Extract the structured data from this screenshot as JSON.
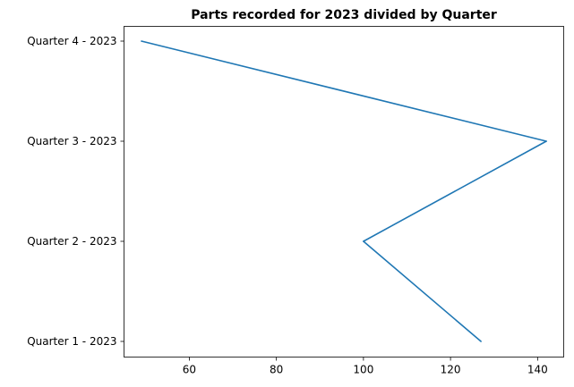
{
  "chart_data": {
    "type": "line",
    "title": "Parts recorded for 2023 divided by Quarter",
    "xlabel": "",
    "ylabel": "",
    "orientation": "horizontal",
    "categories": [
      "Quarter 1 - 2023",
      "Quarter 2 - 2023",
      "Quarter 3 - 2023",
      "Quarter 4 - 2023"
    ],
    "series": [
      {
        "values": [
          127,
          100,
          142,
          49
        ],
        "color": "#1f77b4"
      }
    ],
    "xlim": [
      45,
      146
    ],
    "xticks": [
      60,
      80,
      100,
      120,
      140
    ],
    "grid": false,
    "legend": "none"
  }
}
